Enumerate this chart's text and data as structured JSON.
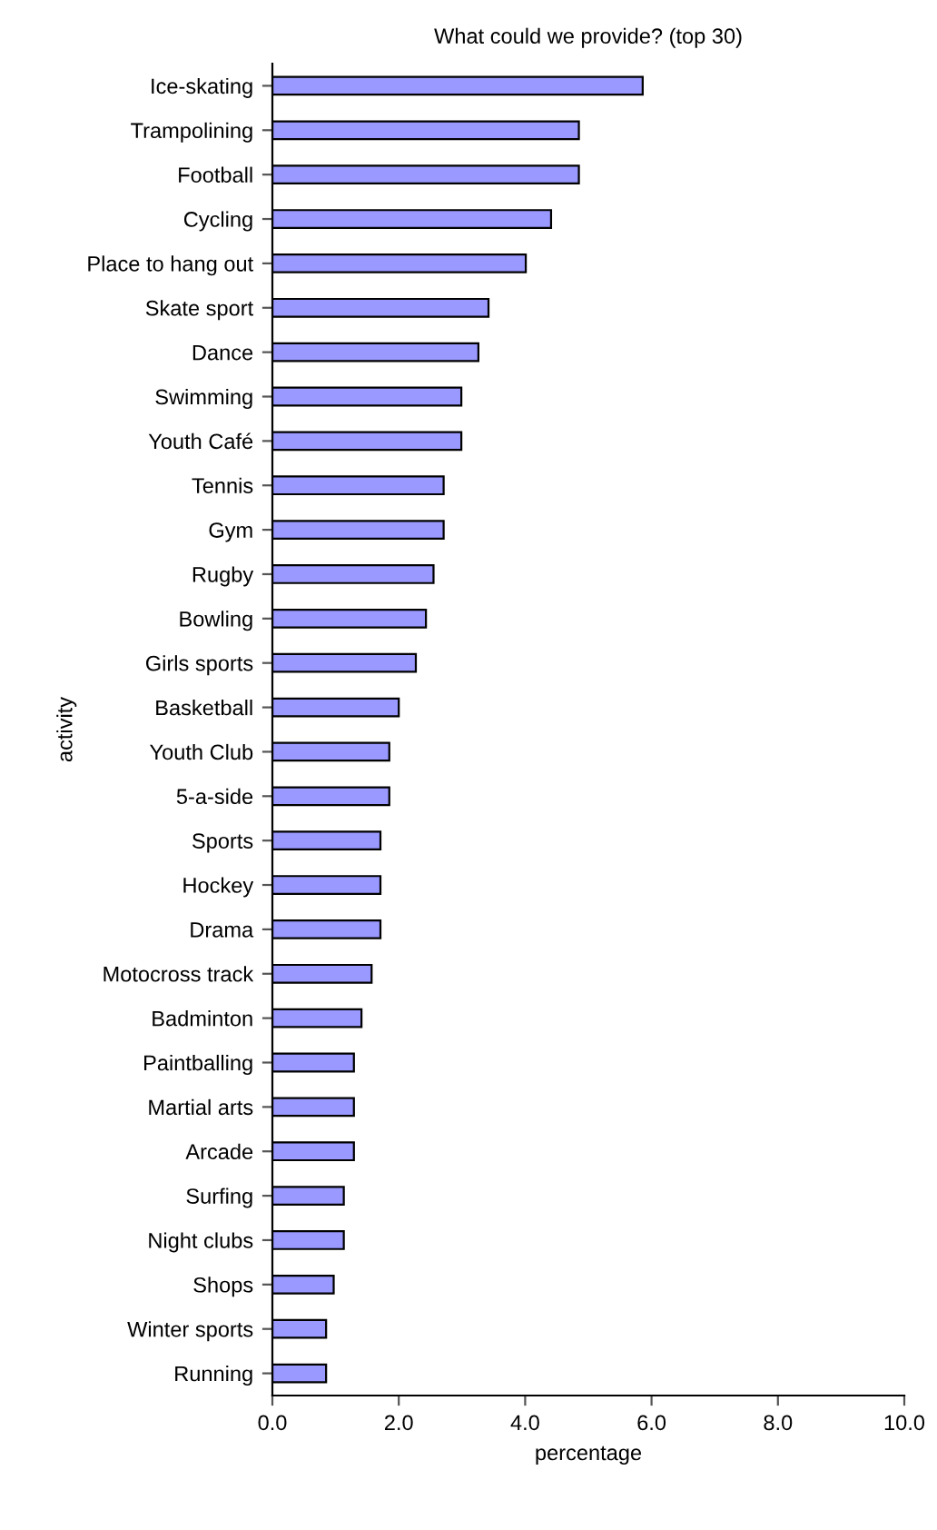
{
  "chart_data": {
    "type": "bar",
    "orientation": "horizontal",
    "title": "What could we provide? (top 30)",
    "xlabel": "percentage",
    "ylabel": "activity",
    "categories": [
      "Ice-skating",
      "Trampolining",
      "Football",
      "Cycling",
      "Place to hang out",
      "Skate sport",
      "Dance",
      "Swimming",
      "Youth Café",
      "Tennis",
      "Gym",
      "Rugby",
      "Bowling",
      "Girls sports",
      "Basketball",
      "Youth Club",
      "5-a-side",
      "Sports",
      "Hockey",
      "Drama",
      "Motocross track",
      "Badminton",
      "Paintballing",
      "Martial arts",
      "Arcade",
      "Surfing",
      "Night clubs",
      "Shops",
      "Winter sports",
      "Running"
    ],
    "values": [
      5.86,
      4.85,
      4.85,
      4.41,
      4.01,
      3.42,
      3.26,
      2.99,
      2.99,
      2.71,
      2.71,
      2.55,
      2.43,
      2.27,
      2.0,
      1.85,
      1.85,
      1.71,
      1.71,
      1.71,
      1.57,
      1.41,
      1.29,
      1.29,
      1.29,
      1.13,
      1.13,
      0.97,
      0.85,
      0.85
    ],
    "color": "#9999ff",
    "xlim": [
      0,
      10
    ],
    "xticks": [
      {
        "value": 0,
        "label": "0.0"
      },
      {
        "value": 2,
        "label": "2.0"
      },
      {
        "value": 4,
        "label": "4.0"
      },
      {
        "value": 6,
        "label": "6.0"
      },
      {
        "value": 8,
        "label": "8.0"
      },
      {
        "value": 10,
        "label": "10.0"
      }
    ],
    "grid": false,
    "legend": false
  }
}
